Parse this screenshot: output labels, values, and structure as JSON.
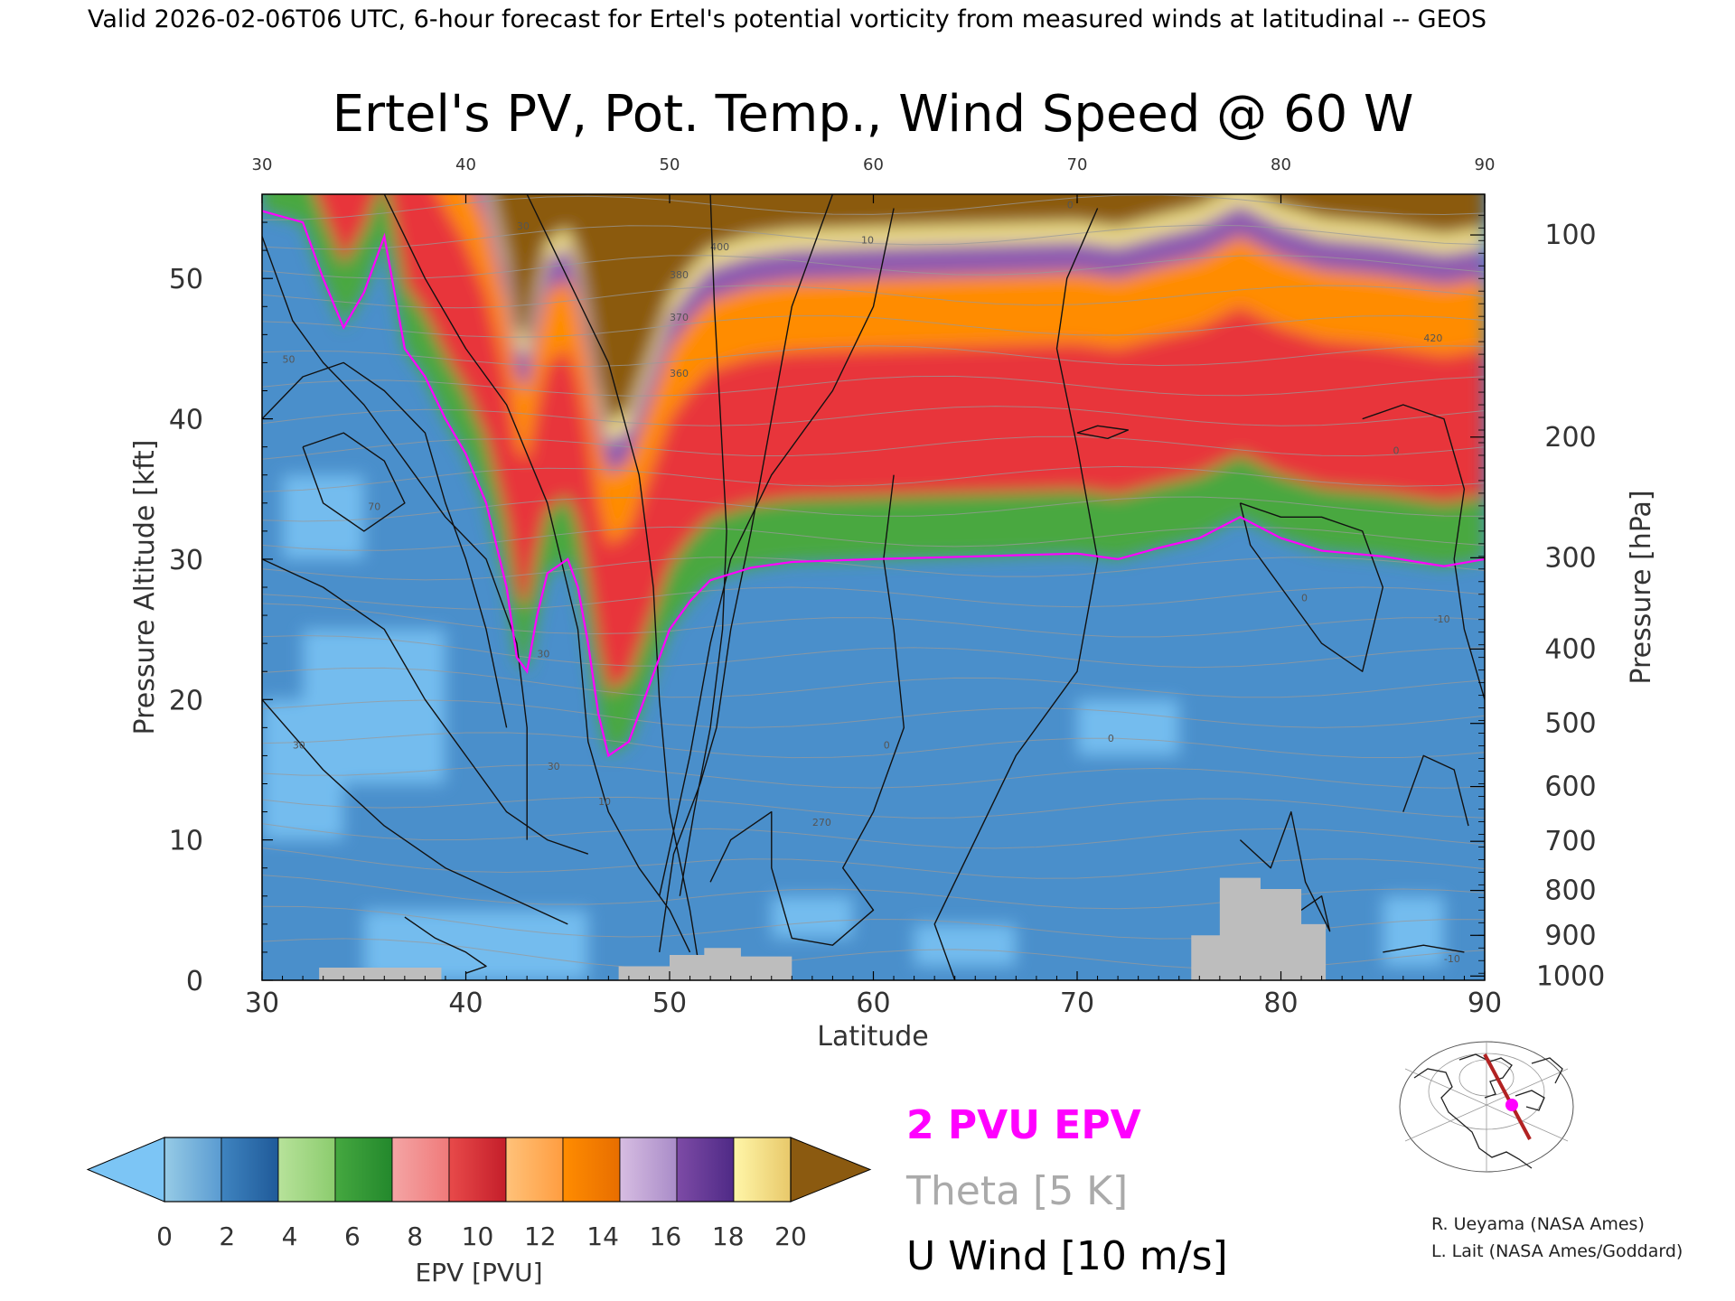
{
  "header": {
    "banner": "Valid 2026-02-06T06 UTC, 6-hour forecast for Ertel's potential vorticity from measured winds at latitudinal -- GEOS"
  },
  "chart_data": {
    "type": "heatmap",
    "title": "Ertel's PV, Pot. Temp., Wind Speed @ 60 W",
    "xlabel": "Latitude",
    "ylabel_left": "Pressure Altitude [kft]",
    "ylabel_right": "Pressure [hPa]",
    "xlim": [
      30,
      90
    ],
    "ylim": [
      0,
      56
    ],
    "x_ticks": [
      30,
      40,
      50,
      60,
      70,
      80,
      90
    ],
    "top_ticks": [
      "30",
      "40",
      "50",
      "60",
      "70",
      "80",
      "90"
    ],
    "bottom_ticks": [
      "30",
      "40",
      "50",
      "60",
      "70",
      "80",
      "90"
    ],
    "y_ticks_kft": [
      "0",
      "10",
      "20",
      "30",
      "40",
      "50"
    ],
    "y_tick_values_kft": [
      0,
      10,
      20,
      30,
      40,
      50
    ],
    "pressure_ticks": [
      {
        "label": "100",
        "kft": 53.1
      },
      {
        "label": "200",
        "kft": 38.7
      },
      {
        "label": "300",
        "kft": 30.1
      },
      {
        "label": "400",
        "kft": 23.6
      },
      {
        "label": "500",
        "kft": 18.3
      },
      {
        "label": "600",
        "kft": 13.8
      },
      {
        "label": "700",
        "kft": 9.9
      },
      {
        "label": "800",
        "kft": 6.4
      },
      {
        "label": "900",
        "kft": 3.2
      },
      {
        "label": "1000",
        "kft": 0.3
      }
    ],
    "pv2_surface_kft": [
      [
        30,
        54.8
      ],
      [
        32,
        54
      ],
      [
        33,
        50
      ],
      [
        34,
        46.5
      ],
      [
        35,
        49
      ],
      [
        36,
        53
      ],
      [
        37,
        45
      ],
      [
        38,
        43
      ],
      [
        39,
        40
      ],
      [
        40,
        37.5
      ],
      [
        41,
        34
      ],
      [
        42,
        28
      ],
      [
        42.5,
        23
      ],
      [
        43,
        22
      ],
      [
        43.5,
        26
      ],
      [
        44,
        29
      ],
      [
        45,
        30
      ],
      [
        45.5,
        28
      ],
      [
        46,
        24
      ],
      [
        46.5,
        19
      ],
      [
        47,
        16
      ],
      [
        48,
        17
      ],
      [
        49,
        21
      ],
      [
        50,
        25
      ],
      [
        51,
        27
      ],
      [
        52,
        28.5
      ],
      [
        54,
        29.4
      ],
      [
        56,
        29.8
      ],
      [
        60,
        30
      ],
      [
        65,
        30.2
      ],
      [
        70,
        30.4
      ],
      [
        72,
        30
      ],
      [
        74,
        30.8
      ],
      [
        76,
        31.5
      ],
      [
        78,
        33
      ],
      [
        80,
        31.5
      ],
      [
        82,
        30.6
      ],
      [
        85,
        30.2
      ],
      [
        88,
        29.5
      ],
      [
        90,
        30
      ]
    ],
    "tropopause_band_colors": {
      "below_2pvu": "#3a86c8",
      "pv_2_6": "#49a83f",
      "pv_6_12": "#e8343a",
      "pv_12_14": "#ff8c00",
      "pv_14_18": "#8e5ab0",
      "pv_18_20": "#f2e38c",
      "above_20": "#8b5a10"
    },
    "orography_kft": [
      [
        32.8,
        0.9
      ],
      [
        38.8,
        0.9
      ],
      [
        47.5,
        1.0
      ],
      [
        50.0,
        1.8
      ],
      [
        51.7,
        2.3
      ],
      [
        53.5,
        1.7
      ],
      [
        56.0,
        0.8
      ],
      [
        75.6,
        3.2
      ],
      [
        77.0,
        7.3
      ],
      [
        79.0,
        6.5
      ],
      [
        81.0,
        4.0
      ],
      [
        82.2,
        3.0
      ]
    ],
    "u_wind_contours": [
      {
        "label": "70",
        "lat": 35.2,
        "kft": 33.5
      },
      {
        "label": "50",
        "lat": 31,
        "kft": 44
      },
      {
        "label": "30",
        "lat": 44.0,
        "kft": 15.0
      },
      {
        "label": "30",
        "lat": 31.5,
        "kft": 16.5
      },
      {
        "label": "30",
        "lat": 43.5,
        "kft": 23.0
      },
      {
        "label": "10",
        "lat": 46.5,
        "kft": 12.5
      },
      {
        "label": "10",
        "lat": 59.4,
        "kft": 52.5
      },
      {
        "label": "30",
        "lat": 42.5,
        "kft": 53.5
      },
      {
        "label": "0",
        "lat": 60.5,
        "kft": 16.5
      },
      {
        "label": "0",
        "lat": 71.5,
        "kft": 17.0
      },
      {
        "label": "0",
        "lat": 69.5,
        "kft": 55.0
      },
      {
        "label": "0",
        "lat": 81,
        "kft": 27.0
      },
      {
        "label": "0",
        "lat": 85.5,
        "kft": 37.5
      },
      {
        "label": "-10",
        "lat": 87.5,
        "kft": 25.5
      },
      {
        "label": "-10",
        "lat": 88.0,
        "kft": 1.3
      }
    ],
    "theta_labels": [
      "270",
      "360",
      "370",
      "380",
      "400",
      "420"
    ],
    "colorbar": {
      "label": "EPV [PVU]",
      "ticks": [
        "0",
        "2",
        "4",
        "6",
        "8",
        "10",
        "12",
        "14",
        "16",
        "18",
        "20"
      ],
      "below_color": "#7cc5f5",
      "above_color": "#8b5a10",
      "segments": [
        [
          "#96cbe6",
          "#5a9bd1"
        ],
        [
          "#3f84c0",
          "#1f5a99"
        ],
        [
          "#b7e29a",
          "#8ccc6e"
        ],
        [
          "#45a840",
          "#23882c"
        ],
        [
          "#f4a5a5",
          "#f07a7a"
        ],
        [
          "#e84a4a",
          "#c41e2a"
        ],
        [
          "#ffc27a",
          "#ff9d40"
        ],
        [
          "#ff8c00",
          "#e86e00"
        ],
        [
          "#d7bde2",
          "#a98cc8"
        ],
        [
          "#7d4ba6",
          "#4f2a86"
        ],
        [
          "#fff6a8",
          "#e8c86a"
        ]
      ]
    },
    "legend": {
      "pv": "2 PVU EPV",
      "theta": "Theta [5 K]",
      "u_wind": "U Wind [10 m/s]",
      "pv_color": "#ff00ff",
      "theta_color": "#aaaaaa",
      "u_color": "#000000"
    }
  },
  "credits": {
    "line1": "R. Ueyama (NASA Ames)",
    "line2": "L. Lait (NASA Ames/Goddard)"
  },
  "map_inset": {
    "track_color": "#b22222",
    "point_color": "#ff00ff"
  }
}
